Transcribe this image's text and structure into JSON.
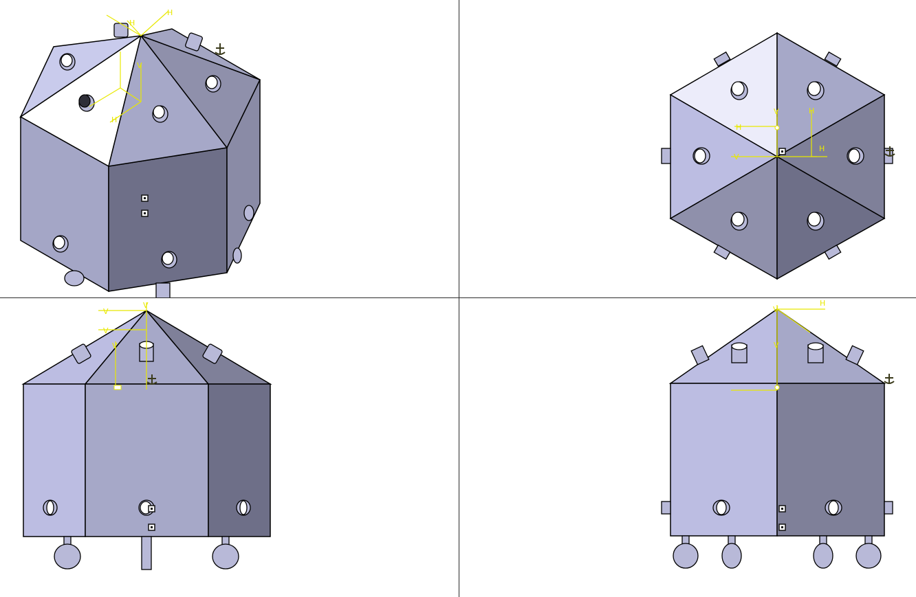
{
  "window": {
    "layout": "four-viewport",
    "background": "#ffffff",
    "divider_color": "#2b2b2b"
  },
  "colors": {
    "face_light": "#ececfa",
    "face_mid": "#bcbde2",
    "face_mid2": "#a6a8c8",
    "face_dark": "#8a8ba6",
    "face_darker": "#6e6f88",
    "edge": "#000000",
    "axis": "#e8e800"
  },
  "axis_labels": {
    "h": "H",
    "v": "V"
  },
  "icons": {
    "anchor": "anchor-icon",
    "constraint": "constraint-square-icon"
  },
  "viewports": [
    {
      "id": "isometric",
      "name": "viewport-isometric"
    },
    {
      "id": "top",
      "name": "viewport-top"
    },
    {
      "id": "front",
      "name": "viewport-front"
    },
    {
      "id": "right",
      "name": "viewport-right"
    }
  ]
}
